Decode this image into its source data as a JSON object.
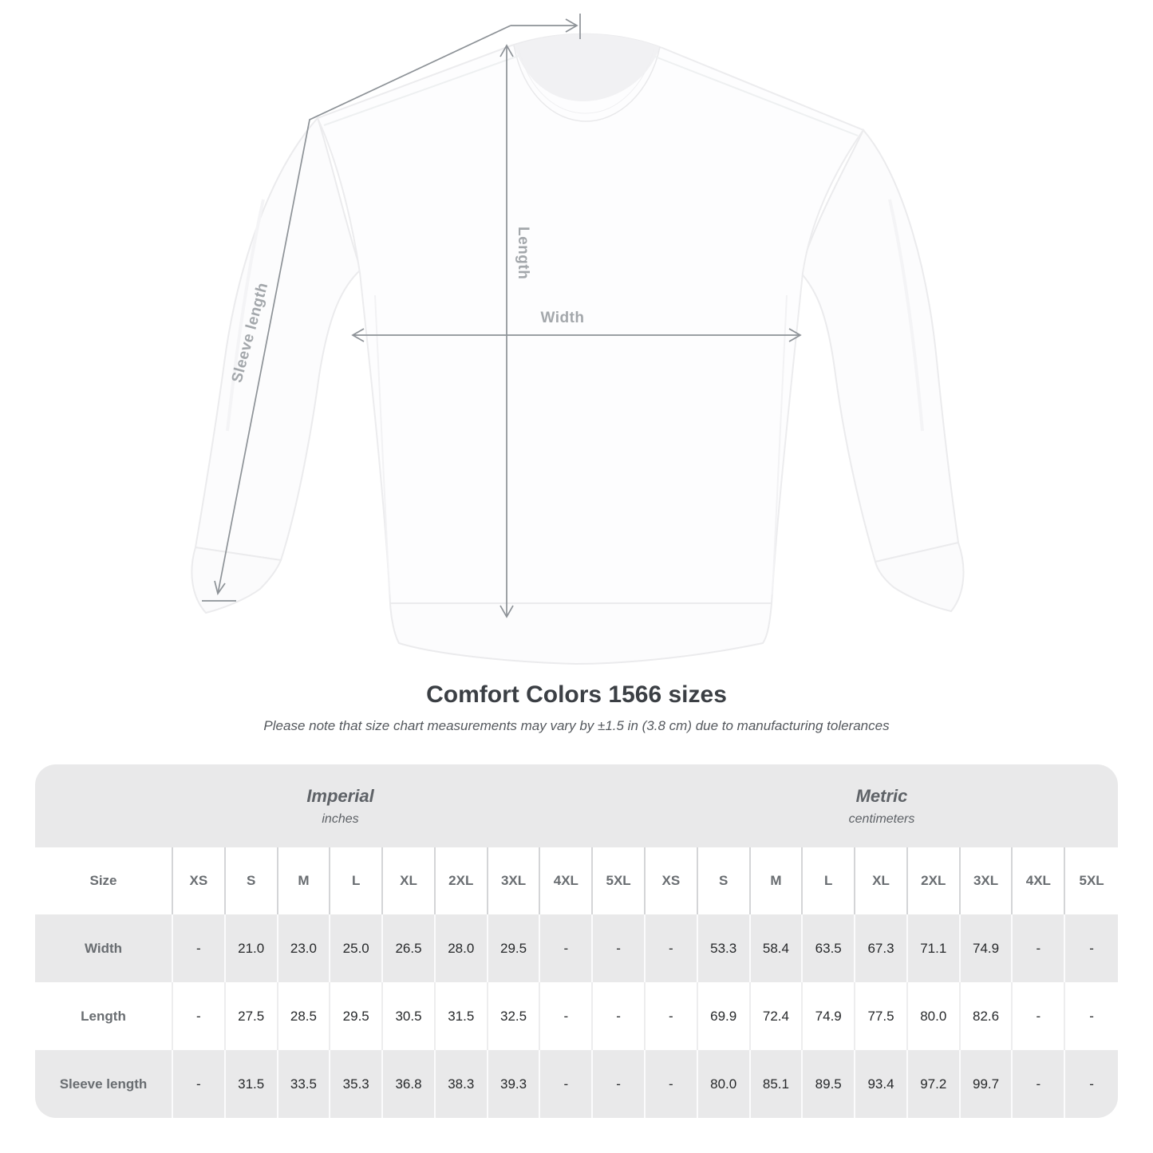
{
  "title": "Comfort Colors 1566 sizes",
  "subtitle": "Please note that size chart measurements may vary by ±1.5 in (3.8 cm) due to manufacturing tolerances",
  "diagram_labels": {
    "length": "Length",
    "width": "Width",
    "sleeve_length": "Sleeve length"
  },
  "chart_data": {
    "type": "table",
    "title": "Comfort Colors 1566 sizes",
    "tolerance_note": "Please note that size chart measurements may vary by ±1.5 in (3.8 cm) due to manufacturing tolerances",
    "unit_groups": [
      {
        "label": "Imperial",
        "unit": "inches"
      },
      {
        "label": "Metric",
        "unit": "centimeters"
      }
    ],
    "size_header_label": "Size",
    "sizes": [
      "XS",
      "S",
      "M",
      "L",
      "XL",
      "2XL",
      "3XL",
      "4XL",
      "5XL"
    ],
    "measurements": [
      {
        "label": "Width",
        "imperial": [
          "-",
          "21.0",
          "23.0",
          "25.0",
          "26.5",
          "28.0",
          "29.5",
          "-",
          "-"
        ],
        "metric": [
          "-",
          "53.3",
          "58.4",
          "63.5",
          "67.3",
          "71.1",
          "74.9",
          "-",
          "-"
        ]
      },
      {
        "label": "Length",
        "imperial": [
          "-",
          "27.5",
          "28.5",
          "29.5",
          "30.5",
          "31.5",
          "32.5",
          "-",
          "-"
        ],
        "metric": [
          "-",
          "69.9",
          "72.4",
          "74.9",
          "77.5",
          "80.0",
          "82.6",
          "-",
          "-"
        ]
      },
      {
        "label": "Sleeve length",
        "imperial": [
          "-",
          "31.5",
          "33.5",
          "35.3",
          "36.8",
          "38.3",
          "39.3",
          "-",
          "-"
        ],
        "metric": [
          "-",
          "80.0",
          "85.1",
          "89.5",
          "93.4",
          "97.2",
          "99.7",
          "-",
          "-"
        ]
      }
    ]
  },
  "colors": {
    "measure_line": "#8d9297",
    "measure_label": "#a3a7ab",
    "table_band": "#e9e9ea",
    "heading_text": "#3b3f44",
    "muted_text": "#5e6267",
    "value_text": "#26282a"
  }
}
